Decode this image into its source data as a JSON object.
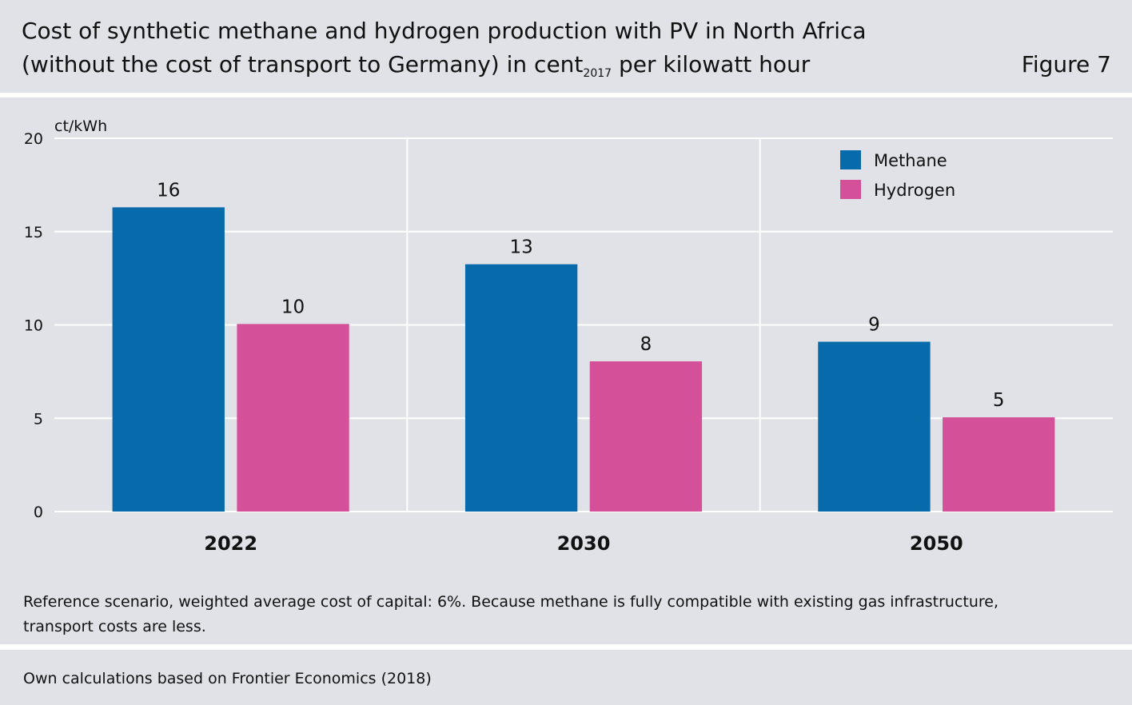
{
  "header": {
    "title_line1": "Cost of synthetic methane and hydrogen production with PV in North Africa",
    "title_line2_pre": "(without the cost of transport to Germany) in cent",
    "title_line2_sub": "2017",
    "title_line2_post": " per kilowatt hour",
    "figure_label": "Figure 7"
  },
  "note": "Reference scenario, weighted average cost of capital: 6%. Because methane is fully compatible with existing gas infrastructure, transport costs are less.",
  "source": "Own calculations based on Frontier Economics (2018)",
  "chart_data": {
    "type": "bar",
    "categories": [
      "2022",
      "2030",
      "2050"
    ],
    "series": [
      {
        "name": "Methane",
        "values": [
          16.3,
          13.25,
          9.1
        ],
        "labels": [
          "16",
          "13",
          "9"
        ],
        "color": "#066aab"
      },
      {
        "name": "Hydrogen",
        "values": [
          10.05,
          8.05,
          5.05
        ],
        "labels": [
          "10",
          "8",
          "5"
        ],
        "color": "#d4519a"
      }
    ],
    "ylabel": "ct/kWh",
    "ylim": [
      0,
      20
    ],
    "yticks": [
      0,
      5,
      10,
      15,
      20
    ],
    "grid": true,
    "legend_position": "top-right"
  }
}
